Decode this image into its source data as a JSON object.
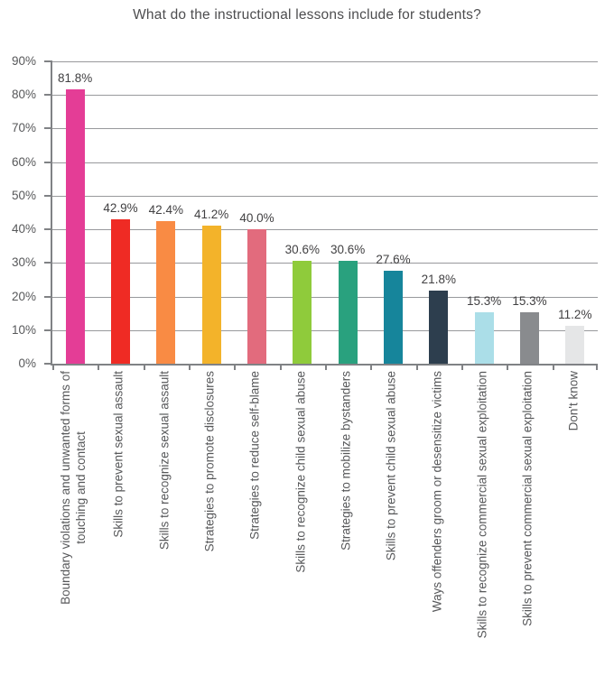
{
  "chart_data": {
    "type": "bar",
    "title": "What do the instructional lessons include for students?",
    "categories": [
      "Boundary violations and unwanted forms of\ntouching and contact",
      "Skills to prevent sexual assault",
      "Skills to recognize sexual assault",
      "Strategies to promote disclosures",
      "Strategies to reduce self-blame",
      "Skills to recognize child sexual abuse",
      "Strategies to mobilize bystanders",
      "Skills to prevent child sexual abuse",
      "Ways offenders groom or desensitize victims",
      "Skills to recognize commercial sexual exploitation",
      "Skills to prevent commercial sexual exploitation",
      "Don't know"
    ],
    "values": [
      81.8,
      42.9,
      42.4,
      41.2,
      40.0,
      30.6,
      30.6,
      27.6,
      21.8,
      15.3,
      15.3,
      11.2
    ],
    "value_labels": [
      "81.8%",
      "42.9%",
      "42.4%",
      "41.2%",
      "40.0%",
      "30.6%",
      "30.6%",
      "27.6%",
      "21.8%",
      "15.3%",
      "15.3%",
      "11.2%"
    ],
    "bar_colors": [
      "#e43d96",
      "#ef2b24",
      "#f98b44",
      "#f3b32a",
      "#e26b7d",
      "#8fcb3b",
      "#29a17e",
      "#16859b",
      "#2d3e4e",
      "#abdee8",
      "#898b8e",
      "#e5e6e7"
    ],
    "xlabel": "",
    "ylabel": "",
    "ylim": [
      0,
      90
    ],
    "ytick_step": 10,
    "ytick_labels": [
      "90%",
      "80%",
      "70%",
      "60%",
      "50%",
      "40%",
      "30%",
      "20%",
      "10%",
      "0%"
    ],
    "grid": "horizontal gridlines on",
    "legend": "none",
    "colors": {
      "axis": "#808285",
      "grid": "#98999c",
      "title_text": "#4d4d4f",
      "tick_text": "#57585a",
      "value_text": "#414042",
      "background": "#ffffff"
    }
  }
}
